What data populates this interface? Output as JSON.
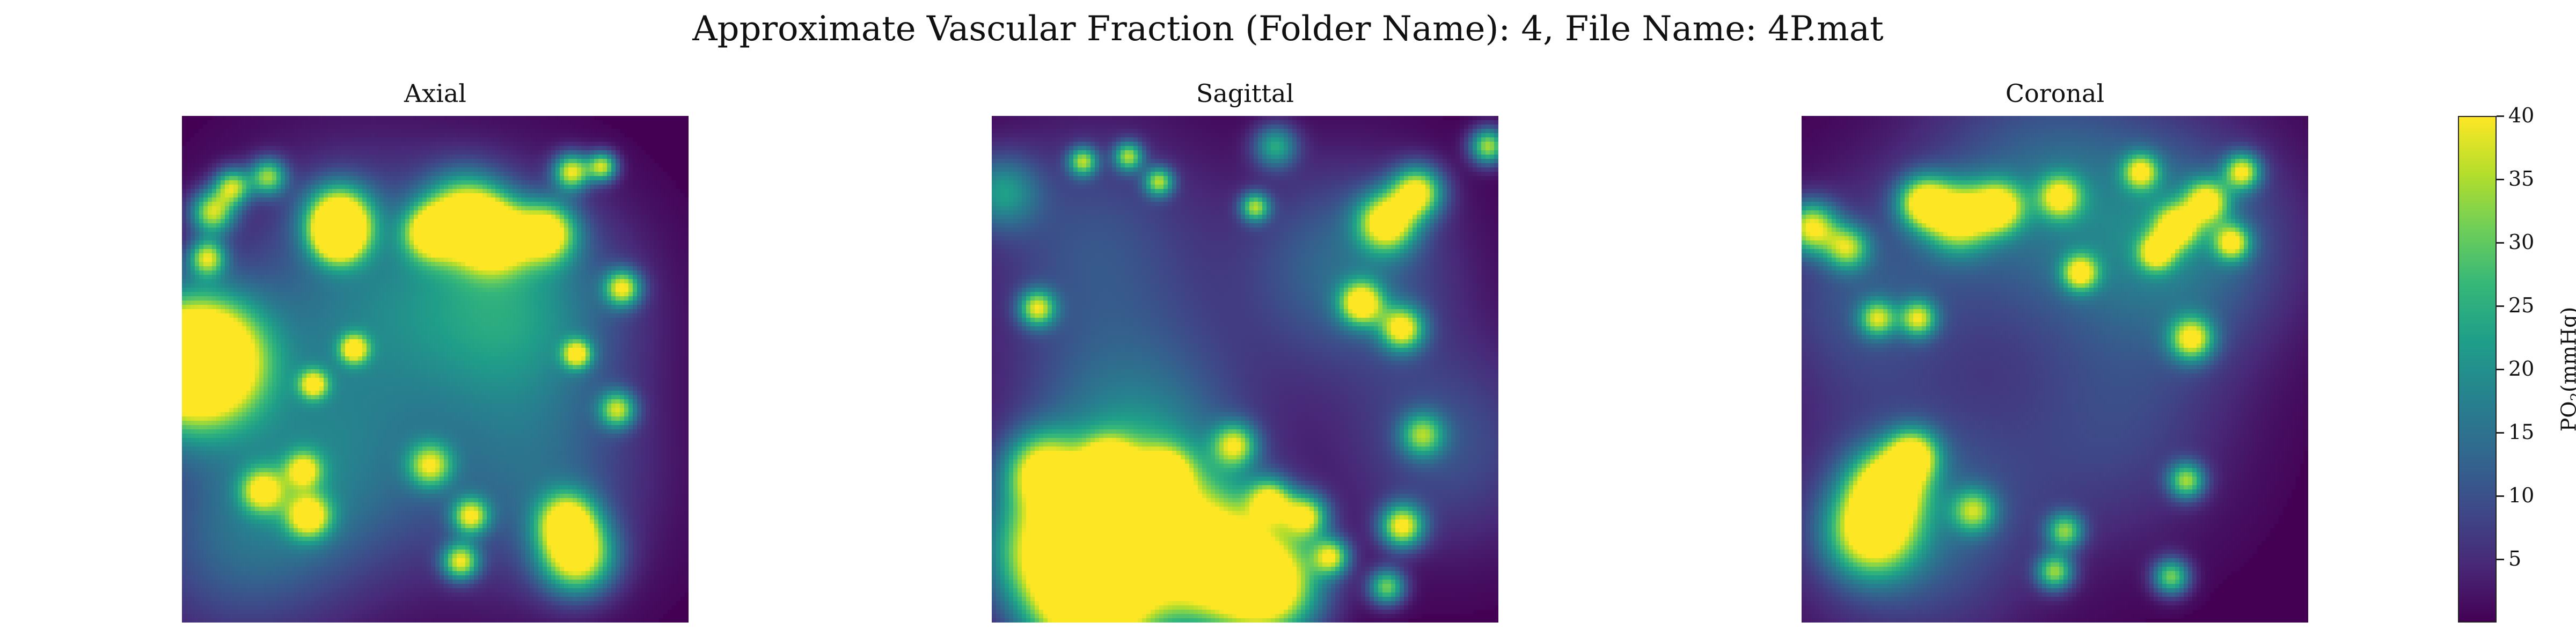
{
  "figure": {
    "suptitle": "Approximate Vascular Fraction (Folder Name): 4, File Name: 4P.mat"
  },
  "chart_data": {
    "type": "heatmap",
    "title": "Approximate Vascular Fraction (Folder Name): 4, File Name: 4P.mat",
    "colormap": "viridis",
    "value_range": [
      0,
      40
    ],
    "grid": false,
    "colorbar": {
      "label_main": "PO",
      "label_sub": "2",
      "label_unit": "(mmHg)",
      "ticks": [
        {
          "label": "5",
          "value": 5
        },
        {
          "label": "10",
          "value": 10
        },
        {
          "label": "15",
          "value": 15
        },
        {
          "label": "20",
          "value": 20
        },
        {
          "label": "25",
          "value": 25
        },
        {
          "label": "30",
          "value": 30
        },
        {
          "label": "35",
          "value": 35
        },
        {
          "label": "40",
          "value": 40
        }
      ],
      "colors": [
        "#440154",
        "#482878",
        "#3e4989",
        "#31688e",
        "#26828e",
        "#1f9e89",
        "#35b779",
        "#6ece58",
        "#b5de2b",
        "#fde725"
      ]
    },
    "panels": [
      {
        "title": "Axial",
        "hotspots": [
          {
            "x": 0.0,
            "y": 0.49,
            "value": 40,
            "spread": 0.095
          },
          {
            "x": 0.05,
            "y": 0.48,
            "value": 40,
            "spread": 0.075
          },
          {
            "x": 0.31,
            "y": 0.2,
            "value": 40,
            "spread": 0.045
          },
          {
            "x": 0.31,
            "y": 0.24,
            "value": 36,
            "spread": 0.035
          },
          {
            "x": 0.56,
            "y": 0.2,
            "value": 40,
            "spread": 0.055
          },
          {
            "x": 0.62,
            "y": 0.24,
            "value": 38,
            "spread": 0.045
          },
          {
            "x": 0.72,
            "y": 0.23,
            "value": 38,
            "spread": 0.04
          },
          {
            "x": 0.49,
            "y": 0.23,
            "value": 32,
            "spread": 0.035
          },
          {
            "x": 0.77,
            "y": 0.11,
            "value": 36,
            "spread": 0.025
          },
          {
            "x": 0.83,
            "y": 0.1,
            "value": 34,
            "spread": 0.02
          },
          {
            "x": 0.06,
            "y": 0.19,
            "value": 34,
            "spread": 0.03
          },
          {
            "x": 0.1,
            "y": 0.14,
            "value": 32,
            "spread": 0.025
          },
          {
            "x": 0.17,
            "y": 0.12,
            "value": 30,
            "spread": 0.025
          },
          {
            "x": 0.05,
            "y": 0.28,
            "value": 32,
            "spread": 0.025
          },
          {
            "x": 0.87,
            "y": 0.34,
            "value": 34,
            "spread": 0.025
          },
          {
            "x": 0.34,
            "y": 0.46,
            "value": 32,
            "spread": 0.02
          },
          {
            "x": 0.26,
            "y": 0.53,
            "value": 30,
            "spread": 0.02
          },
          {
            "x": 0.78,
            "y": 0.47,
            "value": 32,
            "spread": 0.02
          },
          {
            "x": 0.86,
            "y": 0.58,
            "value": 30,
            "spread": 0.025
          },
          {
            "x": 0.16,
            "y": 0.74,
            "value": 30,
            "spread": 0.03
          },
          {
            "x": 0.24,
            "y": 0.7,
            "value": 28,
            "spread": 0.025
          },
          {
            "x": 0.25,
            "y": 0.79,
            "value": 34,
            "spread": 0.03
          },
          {
            "x": 0.49,
            "y": 0.69,
            "value": 28,
            "spread": 0.03
          },
          {
            "x": 0.57,
            "y": 0.79,
            "value": 32,
            "spread": 0.025
          },
          {
            "x": 0.55,
            "y": 0.88,
            "value": 34,
            "spread": 0.025
          },
          {
            "x": 0.78,
            "y": 0.87,
            "value": 40,
            "spread": 0.05
          },
          {
            "x": 0.76,
            "y": 0.8,
            "value": 34,
            "spread": 0.04
          },
          {
            "x": 0.66,
            "y": 0.38,
            "value": 20,
            "spread": 0.15
          },
          {
            "x": 0.35,
            "y": 0.35,
            "value": 14,
            "spread": 0.18
          },
          {
            "x": 0.28,
            "y": 0.7,
            "value": 14,
            "spread": 0.16
          },
          {
            "x": 0.7,
            "y": 0.72,
            "value": 12,
            "spread": 0.15
          },
          {
            "x": 0.1,
            "y": 0.85,
            "value": 10,
            "spread": 0.14
          }
        ]
      },
      {
        "title": "Sagittal",
        "hotspots": [
          {
            "x": 0.28,
            "y": 0.82,
            "value": 40,
            "spread": 0.11
          },
          {
            "x": 0.13,
            "y": 0.86,
            "value": 40,
            "spread": 0.09
          },
          {
            "x": 0.45,
            "y": 0.88,
            "value": 40,
            "spread": 0.09
          },
          {
            "x": 0.55,
            "y": 0.93,
            "value": 40,
            "spread": 0.07
          },
          {
            "x": 0.2,
            "y": 0.98,
            "value": 40,
            "spread": 0.08
          },
          {
            "x": 0.1,
            "y": 0.7,
            "value": 32,
            "spread": 0.05
          },
          {
            "x": 0.23,
            "y": 0.69,
            "value": 34,
            "spread": 0.035
          },
          {
            "x": 0.34,
            "y": 0.71,
            "value": 30,
            "spread": 0.035
          },
          {
            "x": 0.48,
            "y": 0.65,
            "value": 30,
            "spread": 0.03
          },
          {
            "x": 0.55,
            "y": 0.76,
            "value": 32,
            "spread": 0.03
          },
          {
            "x": 0.62,
            "y": 0.79,
            "value": 34,
            "spread": 0.03
          },
          {
            "x": 0.67,
            "y": 0.87,
            "value": 32,
            "spread": 0.025
          },
          {
            "x": 0.81,
            "y": 0.81,
            "value": 38,
            "spread": 0.03
          },
          {
            "x": 0.78,
            "y": 0.93,
            "value": 30,
            "spread": 0.025
          },
          {
            "x": 0.85,
            "y": 0.63,
            "value": 26,
            "spread": 0.03
          },
          {
            "x": 0.78,
            "y": 0.21,
            "value": 40,
            "spread": 0.04
          },
          {
            "x": 0.84,
            "y": 0.15,
            "value": 38,
            "spread": 0.035
          },
          {
            "x": 0.73,
            "y": 0.37,
            "value": 38,
            "spread": 0.03
          },
          {
            "x": 0.81,
            "y": 0.42,
            "value": 36,
            "spread": 0.03
          },
          {
            "x": 0.98,
            "y": 0.06,
            "value": 34,
            "spread": 0.025
          },
          {
            "x": 0.18,
            "y": 0.09,
            "value": 30,
            "spread": 0.02
          },
          {
            "x": 0.27,
            "y": 0.08,
            "value": 30,
            "spread": 0.02
          },
          {
            "x": 0.33,
            "y": 0.13,
            "value": 30,
            "spread": 0.02
          },
          {
            "x": 0.52,
            "y": 0.18,
            "value": 30,
            "spread": 0.02
          },
          {
            "x": 0.56,
            "y": 0.06,
            "value": 22,
            "spread": 0.03
          },
          {
            "x": 0.09,
            "y": 0.38,
            "value": 32,
            "spread": 0.025
          },
          {
            "x": 0.02,
            "y": 0.15,
            "value": 18,
            "spread": 0.05
          },
          {
            "x": 0.28,
            "y": 0.63,
            "value": 16,
            "spread": 0.16
          },
          {
            "x": 0.7,
            "y": 0.3,
            "value": 14,
            "spread": 0.14
          },
          {
            "x": 0.2,
            "y": 0.25,
            "value": 10,
            "spread": 0.16
          },
          {
            "x": 0.9,
            "y": 0.65,
            "value": 10,
            "spread": 0.14
          }
        ]
      },
      {
        "title": "Coronal",
        "hotspots": [
          {
            "x": 0.14,
            "y": 0.82,
            "value": 40,
            "spread": 0.06
          },
          {
            "x": 0.17,
            "y": 0.73,
            "value": 38,
            "spread": 0.05
          },
          {
            "x": 0.22,
            "y": 0.67,
            "value": 34,
            "spread": 0.035
          },
          {
            "x": 0.31,
            "y": 0.2,
            "value": 38,
            "spread": 0.045
          },
          {
            "x": 0.24,
            "y": 0.17,
            "value": 36,
            "spread": 0.035
          },
          {
            "x": 0.39,
            "y": 0.18,
            "value": 34,
            "spread": 0.035
          },
          {
            "x": 0.51,
            "y": 0.16,
            "value": 30,
            "spread": 0.03
          },
          {
            "x": 0.02,
            "y": 0.22,
            "value": 36,
            "spread": 0.035
          },
          {
            "x": 0.09,
            "y": 0.26,
            "value": 28,
            "spread": 0.03
          },
          {
            "x": 0.67,
            "y": 0.11,
            "value": 30,
            "spread": 0.025
          },
          {
            "x": 0.74,
            "y": 0.22,
            "value": 34,
            "spread": 0.03
          },
          {
            "x": 0.8,
            "y": 0.17,
            "value": 34,
            "spread": 0.03
          },
          {
            "x": 0.85,
            "y": 0.25,
            "value": 32,
            "spread": 0.025
          },
          {
            "x": 0.87,
            "y": 0.11,
            "value": 34,
            "spread": 0.025
          },
          {
            "x": 0.7,
            "y": 0.27,
            "value": 30,
            "spread": 0.025
          },
          {
            "x": 0.15,
            "y": 0.4,
            "value": 28,
            "spread": 0.025
          },
          {
            "x": 0.23,
            "y": 0.4,
            "value": 30,
            "spread": 0.025
          },
          {
            "x": 0.77,
            "y": 0.44,
            "value": 34,
            "spread": 0.03
          },
          {
            "x": 0.55,
            "y": 0.31,
            "value": 32,
            "spread": 0.025
          },
          {
            "x": 0.52,
            "y": 0.82,
            "value": 28,
            "spread": 0.025
          },
          {
            "x": 0.34,
            "y": 0.78,
            "value": 26,
            "spread": 0.03
          },
          {
            "x": 0.5,
            "y": 0.9,
            "value": 30,
            "spread": 0.025
          },
          {
            "x": 0.73,
            "y": 0.91,
            "value": 30,
            "spread": 0.025
          },
          {
            "x": 0.76,
            "y": 0.72,
            "value": 30,
            "spread": 0.025
          },
          {
            "x": 0.48,
            "y": 0.16,
            "value": 14,
            "spread": 0.18
          },
          {
            "x": 0.76,
            "y": 0.26,
            "value": 14,
            "spread": 0.15
          },
          {
            "x": 0.22,
            "y": 0.8,
            "value": 14,
            "spread": 0.16
          },
          {
            "x": 0.62,
            "y": 0.62,
            "value": 8,
            "spread": 0.16
          },
          {
            "x": 0.12,
            "y": 0.36,
            "value": 10,
            "spread": 0.14
          }
        ]
      }
    ]
  }
}
